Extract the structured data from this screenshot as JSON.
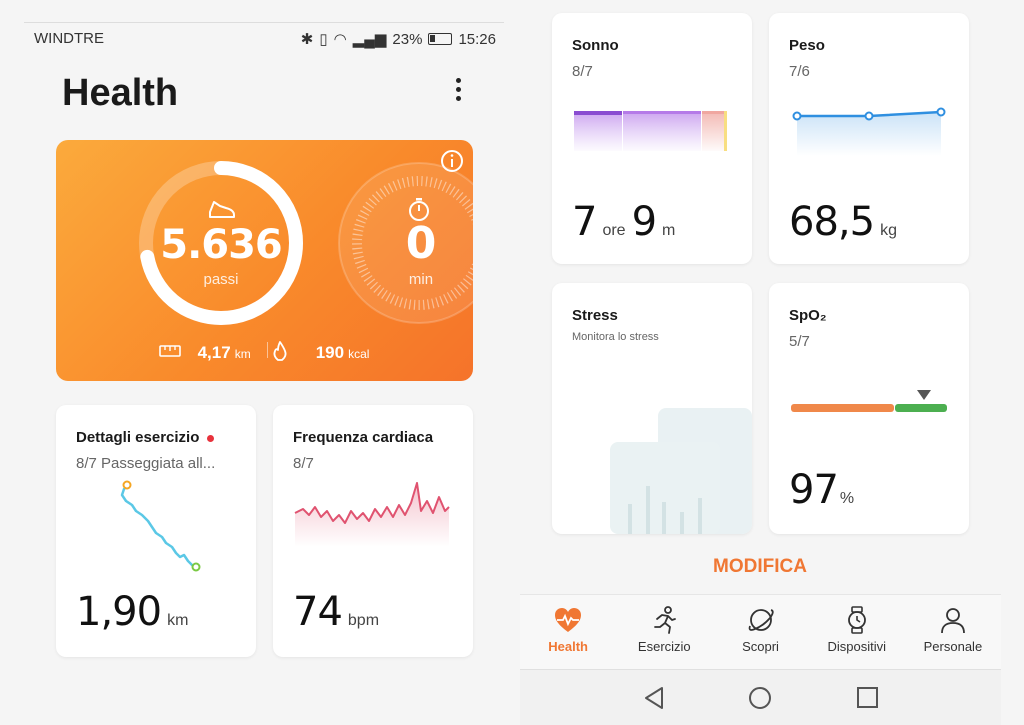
{
  "status_bar": {
    "carrier": "WINDTRE",
    "battery": "23%",
    "time": "15:26"
  },
  "header": {
    "title": "Health"
  },
  "activity": {
    "steps": "5.636",
    "steps_label": "passi",
    "minutes": "0",
    "minutes_label": "min",
    "distance": "4,17",
    "distance_unit": "km",
    "calories": "190",
    "calories_unit": "kcal",
    "steps_progress": 0.72
  },
  "exercise": {
    "title": "Dettagli esercizio",
    "subtitle": "8/7 Passeggiata all...",
    "value": "1,90",
    "unit": "km"
  },
  "heart": {
    "title": "Frequenza cardiaca",
    "date": "8/7",
    "value": "74",
    "unit": "bpm"
  },
  "sleep": {
    "title": "Sonno",
    "date": "8/7",
    "hours": "7",
    "hours_unit": "ore",
    "minutes": "9",
    "minutes_unit": "m"
  },
  "weight": {
    "title": "Peso",
    "date": "7/6",
    "value": "68,5",
    "unit": "kg"
  },
  "stress": {
    "title": "Stress",
    "subtitle": "Monitora lo stress"
  },
  "spo2": {
    "title": "SpO₂",
    "date": "5/7",
    "value": "97",
    "unit": "%"
  },
  "modifica": "MODIFICA",
  "bottom_nav": [
    {
      "label": "Health",
      "icon": "heart-pulse-icon"
    },
    {
      "label": "Esercizio",
      "icon": "runner-icon"
    },
    {
      "label": "Scopri",
      "icon": "planet-icon"
    },
    {
      "label": "Dispositivi",
      "icon": "watch-icon"
    },
    {
      "label": "Personale",
      "icon": "person-icon"
    }
  ],
  "colors": {
    "accent": "#f07733",
    "heart_line": "#e05370",
    "weight_line": "#2f8fe0",
    "route": "#5bc8e6"
  }
}
